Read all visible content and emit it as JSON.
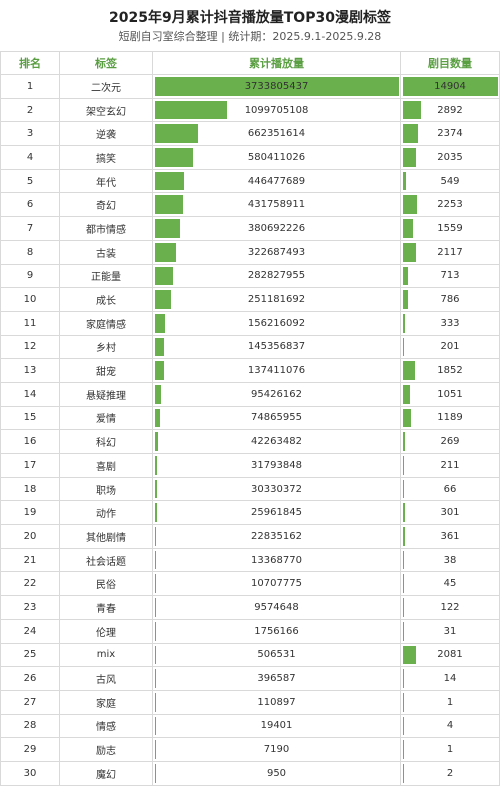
{
  "title": "2025年9月累计抖音播放量TOP30漫剧标签",
  "subtitle": "短剧自习室综合整理 | 统计期：2025.9.1-2025.9.28",
  "colors": {
    "header_text": "#5a9e42",
    "bar": "#6ab04c",
    "grid": "#d9d9d9"
  },
  "headers": [
    "排名",
    "标签",
    "累计播放量",
    "剧目数量"
  ],
  "chart_data": {
    "type": "table",
    "columns": [
      "排名",
      "标签",
      "累计播放量",
      "剧目数量"
    ],
    "rows": [
      {
        "rank": "1",
        "tag": "二次元",
        "plays": 3733805437,
        "count": 14904
      },
      {
        "rank": "2",
        "tag": "架空玄幻",
        "plays": 1099705108,
        "count": 2892
      },
      {
        "rank": "3",
        "tag": "逆袭",
        "plays": 662351614,
        "count": 2374
      },
      {
        "rank": "4",
        "tag": "搞笑",
        "plays": 580411026,
        "count": 2035
      },
      {
        "rank": "5",
        "tag": "年代",
        "plays": 446477689,
        "count": 549
      },
      {
        "rank": "6",
        "tag": "奇幻",
        "plays": 431758911,
        "count": 2253
      },
      {
        "rank": "7",
        "tag": "都市情感",
        "plays": 380692226,
        "count": 1559
      },
      {
        "rank": "8",
        "tag": "古装",
        "plays": 322687493,
        "count": 2117
      },
      {
        "rank": "9",
        "tag": "正能量",
        "plays": 282827955,
        "count": 713
      },
      {
        "rank": "10",
        "tag": "成长",
        "plays": 251181692,
        "count": 786
      },
      {
        "rank": "11",
        "tag": "家庭情感",
        "plays": 156216092,
        "count": 333
      },
      {
        "rank": "12",
        "tag": "乡村",
        "plays": 145356837,
        "count": 201
      },
      {
        "rank": "13",
        "tag": "甜宠",
        "plays": 137411076,
        "count": 1852
      },
      {
        "rank": "14",
        "tag": "悬疑推理",
        "plays": 95426162,
        "count": 1051
      },
      {
        "rank": "15",
        "tag": "爱情",
        "plays": 74865955,
        "count": 1189
      },
      {
        "rank": "16",
        "tag": "科幻",
        "plays": 42263482,
        "count": 269
      },
      {
        "rank": "17",
        "tag": "喜剧",
        "plays": 31793848,
        "count": 211
      },
      {
        "rank": "18",
        "tag": "职场",
        "plays": 30330372,
        "count": 66
      },
      {
        "rank": "19",
        "tag": "动作",
        "plays": 25961845,
        "count": 301
      },
      {
        "rank": "20",
        "tag": "其他剧情",
        "plays": 22835162,
        "count": 361
      },
      {
        "rank": "21",
        "tag": "社会话题",
        "plays": 13368770,
        "count": 38
      },
      {
        "rank": "22",
        "tag": "民俗",
        "plays": 10707775,
        "count": 45
      },
      {
        "rank": "23",
        "tag": "青春",
        "plays": 9574648,
        "count": 122
      },
      {
        "rank": "24",
        "tag": "伦理",
        "plays": 1756166,
        "count": 31
      },
      {
        "rank": "25",
        "tag": "mix",
        "plays": 506531,
        "count": 2081
      },
      {
        "rank": "26",
        "tag": "古风",
        "plays": 396587,
        "count": 14
      },
      {
        "rank": "27",
        "tag": "家庭",
        "plays": 110897,
        "count": 1
      },
      {
        "rank": "28",
        "tag": "情感",
        "plays": 19401,
        "count": 4
      },
      {
        "rank": "29",
        "tag": "励志",
        "plays": 7190,
        "count": 1
      },
      {
        "rank": "30",
        "tag": "魔幻",
        "plays": 950,
        "count": 2
      }
    ]
  }
}
